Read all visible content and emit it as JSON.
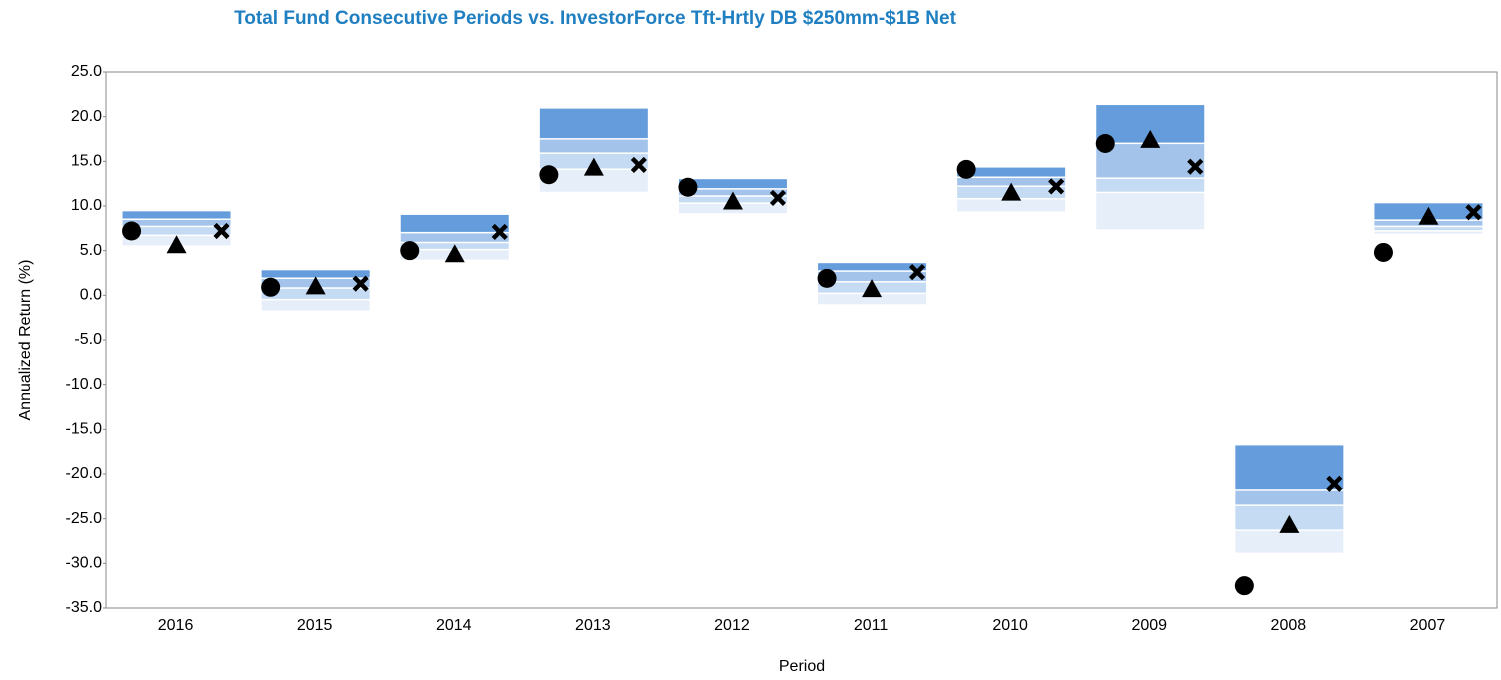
{
  "chart_data": {
    "type": "floating_bar",
    "title": "Total Fund Consecutive Periods vs. InvestorForce Tft-Hrtly DB $250mm-$1B Net",
    "y_label": "Annualized Return (%)",
    "x_label": "Period",
    "categories": [
      "2016",
      "2015",
      "2014",
      "2013",
      "2012",
      "2011",
      "2010",
      "2009",
      "2008",
      "2007"
    ],
    "ylim": [
      -35,
      25
    ],
    "yticks": [
      {
        "value": 25,
        "label": "25.0"
      },
      {
        "value": 20,
        "label": "20.0"
      },
      {
        "value": 15,
        "label": "15.0"
      },
      {
        "value": 10,
        "label": "10.0"
      },
      {
        "value": 5,
        "label": "5.0"
      },
      {
        "value": 0,
        "label": "0.0"
      },
      {
        "value": -5,
        "label": "-5.0"
      },
      {
        "value": -10,
        "label": "-10.0"
      },
      {
        "value": -15,
        "label": "-15.0"
      },
      {
        "value": -20,
        "label": "-20.0"
      },
      {
        "value": -25,
        "label": "-25.0"
      },
      {
        "value": -30,
        "label": "-30.0"
      },
      {
        "value": -35,
        "label": "-35.0"
      }
    ],
    "percentiles": [
      [
        9.4,
        2.8,
        9.0,
        20.9,
        13.0,
        3.6,
        14.3,
        21.3,
        -16.8,
        10.3
      ],
      [
        8.6,
        2.0,
        7.1,
        17.6,
        12.0,
        2.8,
        13.3,
        17.1,
        -21.7,
        8.5
      ],
      [
        7.8,
        0.9,
        6.0,
        16.0,
        11.2,
        1.6,
        12.3,
        13.2,
        -23.4,
        7.8
      ],
      [
        6.8,
        -0.4,
        5.2,
        14.2,
        10.4,
        0.3,
        10.9,
        11.6,
        -26.2,
        7.3
      ],
      [
        5.6,
        -1.7,
        4.0,
        11.6,
        9.2,
        -1.0,
        9.4,
        7.4,
        -28.8,
        6.9
      ]
    ],
    "band_colors": [
      "#659ddc",
      "#a3c3ea",
      "#c5dbf3",
      "#e6eef9"
    ],
    "markers": [
      {
        "shape": "circle",
        "color": "#000000",
        "values": [
          7.2,
          0.9,
          5.0,
          13.5,
          12.1,
          1.9,
          14.1,
          17.0,
          -32.5,
          4.8
        ]
      },
      {
        "shape": "triangle",
        "color": "#000000",
        "values": [
          5.6,
          1.0,
          4.6,
          14.3,
          10.5,
          0.7,
          11.5,
          17.4,
          -25.7,
          8.8
        ]
      },
      {
        "shape": "cross",
        "color": "#000000",
        "values": [
          7.2,
          1.3,
          7.1,
          14.6,
          10.9,
          2.6,
          12.2,
          14.4,
          -21.1,
          9.3
        ]
      }
    ]
  }
}
